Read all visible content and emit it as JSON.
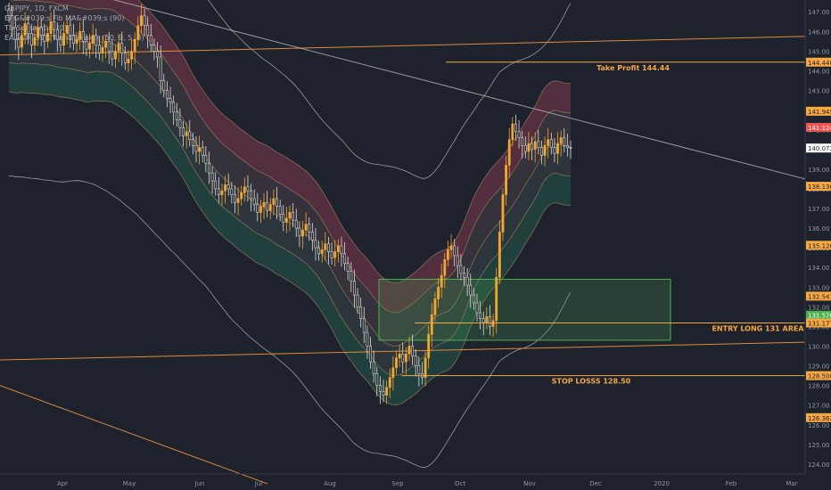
{
  "legend": {
    "symbol_line": "GBPJPY, 1D, FXCM",
    "indicator_1": "EAG&#039;s Fib MA&#039;s (90)",
    "indicator_2": "TD Sequential (0)",
    "indicator_3": "EAG&#039;s TrendBreaker (50, 9, 5, 3)"
  },
  "colors": {
    "background": "#1e222d",
    "candle_up": "#f0a830",
    "candle_down": "#2b2b2b",
    "band_red": "#e0506a",
    "band_green": "#2ea870",
    "trendline_orange": "#e08a3c",
    "label_orange": "#f5a742",
    "box_green": "#4caf50",
    "axis_text": "#9598a1",
    "last_price_bg": "#ffffff",
    "red_price_bg": "#ef5350",
    "green_price_bg": "#4caf50"
  },
  "chart_data": {
    "type": "candlestick",
    "symbol": "GBPJPY",
    "timeframe": "1D",
    "x_ticks": [
      "Apr",
      "May",
      "Jun",
      "Jul",
      "Aug",
      "Sep",
      "Oct",
      "Nov",
      "Dec",
      "2020",
      "Feb",
      "Mar"
    ],
    "y_ticks": [
      "147.00",
      "146.00",
      "145.00",
      "144.00",
      "143.00",
      "142.00",
      "141.00",
      "140.00",
      "139.00",
      "138.00",
      "137.00",
      "136.00",
      "135.00",
      "134.00",
      "133.00",
      "132.00",
      "131.00",
      "130.00",
      "129.00",
      "128.00",
      "127.00",
      "126.00",
      "125.00",
      "124.00"
    ],
    "ylim": [
      123.5,
      147.6
    ],
    "price_labels": [
      {
        "text": "144.440",
        "value": 144.44,
        "style": "orange"
      },
      {
        "text": "141.945",
        "value": 141.945,
        "style": "orange"
      },
      {
        "text": "141.124",
        "value": 141.124,
        "style": "red"
      },
      {
        "text": "140.072",
        "value": 140.072,
        "style": "white"
      },
      {
        "text": "138.130",
        "value": 138.13,
        "style": "orange"
      },
      {
        "text": "135.126",
        "value": 135.126,
        "style": "orange"
      },
      {
        "text": "132.541",
        "value": 132.541,
        "style": "orange"
      },
      {
        "text": "131.576",
        "value": 131.576,
        "style": "green"
      },
      {
        "text": "131.177",
        "value": 131.177,
        "style": "orange"
      },
      {
        "text": "128.500",
        "value": 128.5,
        "style": "orange"
      },
      {
        "text": "126.362",
        "value": 126.362,
        "style": "orange"
      }
    ],
    "annotations": [
      {
        "text": "Take Profit 144.44",
        "value": 144.44
      },
      {
        "text": "ENTRY LONG 131 AREA",
        "value": 131.177
      },
      {
        "text": "STOP LOSSS 128.50",
        "value": 128.5
      }
    ],
    "entry_zone": {
      "low": 130.3,
      "high": 133.4,
      "from": "Sep",
      "to": "Dec"
    },
    "closes": [
      146.8,
      146.2,
      145.6,
      145.2,
      145.8,
      146.4,
      145.9,
      145.3,
      145.7,
      146.2,
      145.8,
      145.5,
      145.9,
      146.5,
      146.1,
      145.6,
      145.3,
      145.9,
      146.3,
      145.8,
      145.4,
      145.6,
      146.0,
      145.5,
      145.1,
      145.4,
      145.8,
      145.3,
      144.9,
      145.2,
      145.5,
      145.0,
      144.6,
      145.0,
      145.4,
      144.9,
      144.4,
      144.6,
      145.0,
      145.6,
      146.3,
      146.8,
      146.3,
      145.8,
      145.3,
      145.0,
      144.7,
      143.5,
      143.0,
      142.6,
      142.4,
      141.9,
      141.5,
      141.1,
      140.7,
      140.9,
      140.5,
      140.2,
      139.9,
      140.1,
      139.7,
      139.3,
      138.8,
      138.4,
      138.0,
      137.7,
      137.9,
      138.2,
      138.0,
      137.7,
      137.3,
      137.5,
      137.8,
      138.1,
      137.9,
      137.5,
      137.2,
      136.8,
      137.1,
      137.3,
      136.9,
      137.2,
      137.5,
      137.1,
      136.7,
      136.3,
      136.5,
      136.8,
      136.4,
      136.0,
      135.6,
      135.9,
      136.2,
      135.8,
      135.4,
      135.0,
      134.7,
      134.9,
      135.2,
      134.8,
      134.5,
      134.8,
      135.1,
      134.7,
      134.2,
      133.8,
      133.3,
      132.6,
      132.0,
      131.4,
      130.7,
      130.0,
      129.2,
      128.6,
      128.0,
      127.7,
      127.5,
      127.9,
      128.4,
      128.9,
      129.4,
      129.6,
      129.2,
      129.6,
      130.0,
      129.5,
      129.0,
      128.6,
      128.4,
      129.4,
      130.6,
      131.6,
      132.4,
      133.0,
      133.6,
      134.4,
      134.9,
      135.1,
      134.6,
      134.1,
      133.7,
      133.5,
      133.1,
      132.6,
      132.2,
      131.7,
      131.4,
      131.2,
      131.5,
      131.0,
      131.3,
      133.5,
      135.8,
      137.7,
      139.2,
      140.5,
      141.3,
      140.9,
      140.6,
      140.2,
      139.9,
      140.3,
      140.0,
      140.4,
      140.1,
      139.7,
      140.2,
      140.5,
      140.1,
      139.8,
      140.3,
      140.6,
      140.2,
      140.1,
      140.072
    ]
  }
}
